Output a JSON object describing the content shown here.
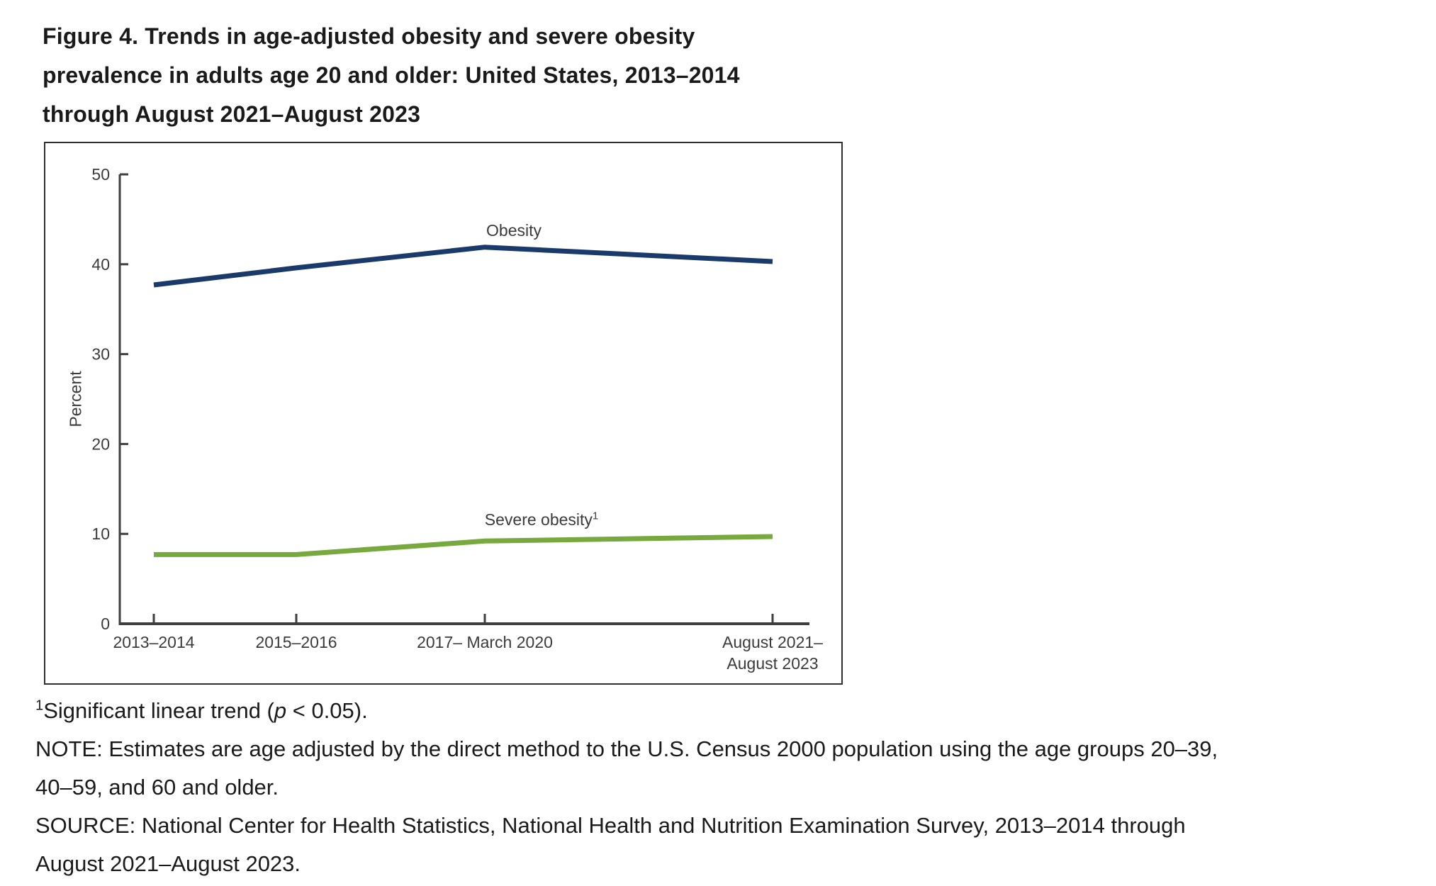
{
  "figure": {
    "title_lines": [
      "Figure 4. Trends in age-adjusted obesity and severe obesity",
      "prevalence in adults age 20 and older: United States, 2013–2014",
      "through August 2021–August 2023"
    ],
    "footnote": {
      "marker": "1",
      "text_before_italic": "Significant linear trend (",
      "italic": "p",
      "text_after_italic": " < 0.05)."
    },
    "note_lines": [
      "NOTE: Estimates are age adjusted by the direct method to the U.S. Census 2000 population using the age groups 20–39,",
      "40–59, and 60 and older."
    ],
    "source_lines": [
      "SOURCE: National Center for Health Statistics, National Health and Nutrition Examination Survey, 2013–2014 through",
      "August 2021–August 2023."
    ]
  },
  "chart_data": {
    "type": "line",
    "title": "Figure 4. Trends in age-adjusted obesity and severe obesity prevalence in adults age 20 and older: United States, 2013–2014 through August 2021–August 2023",
    "ylabel": "Percent",
    "xlabel": "",
    "ylim": [
      0,
      50
    ],
    "yticks": [
      0,
      10,
      20,
      30,
      40,
      50
    ],
    "grid": false,
    "legend_position": "inline-labels",
    "categories": [
      "2013–2014",
      "2015–2016",
      "2017– March 2020",
      "August 2021–August 2023"
    ],
    "categories_lines": [
      [
        "2013–2014"
      ],
      [
        "2015–2016"
      ],
      [
        "2017– March 2020"
      ],
      [
        "August 2021–",
        "August 2023"
      ]
    ],
    "series": [
      {
        "name": "Obesity",
        "footnote_marker": "",
        "values": [
          37.7,
          39.6,
          41.9,
          40.3
        ],
        "color": "#1a3a6b"
      },
      {
        "name": "Severe obesity",
        "footnote_marker": "1",
        "values": [
          7.7,
          7.7,
          9.2,
          9.7
        ],
        "color": "#77a93f"
      }
    ],
    "axis_color": "#3f3f3f"
  }
}
